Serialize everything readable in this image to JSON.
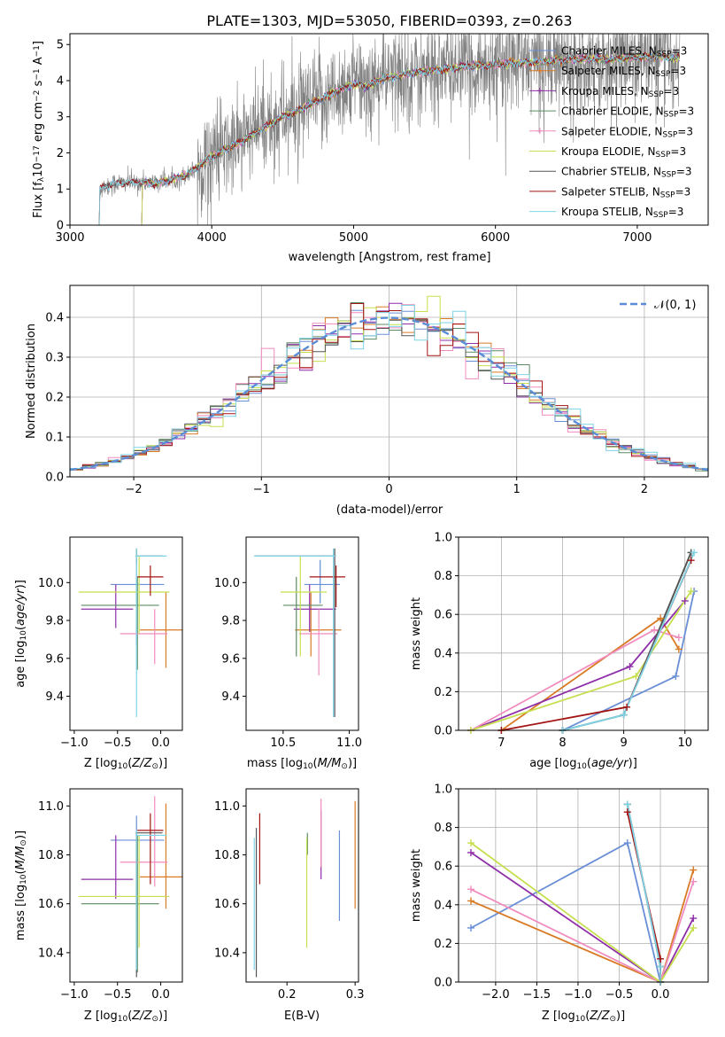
{
  "title": "PLATE=1303, MJD=53050, FIBERID=0393, z=0.263",
  "series_colors": [
    "#6a8fd6",
    "#d97a25",
    "#8f2fa8",
    "#5c8c63",
    "#f08cbe",
    "#c5df4f",
    "#555555",
    "#a31414",
    "#7ed4e6"
  ],
  "chart_data": [
    {
      "id": "spectrum",
      "type": "line",
      "xlabel": "wavelength [Angstrom, rest frame]",
      "ylabel": "Flux [f$_\\lambda$10$^{-17}$ erg cm$^{-2}$ s$^{-1}$ A$^{-1}$]",
      "ylabel_parts": [
        "Flux [f",
        "λ",
        "10",
        "−17",
        " erg cm",
        "−2",
        " s",
        "−1",
        " A",
        "−1",
        "]"
      ],
      "xlim": [
        3000,
        7500
      ],
      "ylim": [
        0,
        5.3
      ],
      "xticks": [
        3000,
        4000,
        5000,
        6000,
        7000
      ],
      "yticks": [
        0,
        1,
        2,
        3,
        4,
        5
      ],
      "data_color": "#808080",
      "data_range": [
        3200,
        7300
      ],
      "data_profile": {
        "x": [
          3200,
          3300,
          3500,
          3600,
          3700,
          3800,
          3900,
          3950,
          4000,
          4100,
          4200,
          4300,
          4400,
          4500,
          4600,
          4700,
          4800,
          4900,
          5000,
          5100,
          5200,
          5400,
          5600,
          5800,
          6000,
          6200,
          6400,
          6600,
          6800,
          7000,
          7200,
          7300
        ],
        "y": [
          1.0,
          1.15,
          1.2,
          1.15,
          1.25,
          1.35,
          1.6,
          1.75,
          1.9,
          2.1,
          2.3,
          2.55,
          2.75,
          3.0,
          3.15,
          3.35,
          3.55,
          3.75,
          3.9,
          3.85,
          4.05,
          4.2,
          4.3,
          4.4,
          4.45,
          4.5,
          4.55,
          4.6,
          4.6,
          4.65,
          4.65,
          4.6
        ]
      },
      "legend": [
        "Chabrier MILES, N$_{SSP}$=3",
        "Salpeter MILES, N$_{SSP}$=3",
        "Kroupa MILES, N$_{SSP}$=3",
        "Chabrier ELODIE, N$_{SSP}$=3",
        "Salpeter ELODIE, N$_{SSP}$=3",
        "Kroupa ELODIE, N$_{SSP}$=3",
        "Chabrier STELIB, N$_{SSP}$=3",
        "Salpeter STELIB, N$_{SSP}$=3",
        "Kroupa STELIB, N$_{SSP}$=3"
      ],
      "legend_parts": [
        {
          "pre": "Chabrier MILES, N",
          "sub": "SSP",
          "post": "=3"
        },
        {
          "pre": "Salpeter MILES, N",
          "sub": "SSP",
          "post": "=3"
        },
        {
          "pre": "Kroupa MILES, N",
          "sub": "SSP",
          "post": "=3"
        },
        {
          "pre": "Chabrier ELODIE, N",
          "sub": "SSP",
          "post": "=3"
        },
        {
          "pre": "Salpeter ELODIE, N",
          "sub": "SSP",
          "post": "=3"
        },
        {
          "pre": "Kroupa ELODIE, N",
          "sub": "SSP",
          "post": "=3"
        },
        {
          "pre": "Chabrier STELIB, N",
          "sub": "SSP",
          "post": "=3"
        },
        {
          "pre": "Salpeter STELIB, N",
          "sub": "SSP",
          "post": "=3"
        },
        {
          "pre": "Kroupa STELIB, N",
          "sub": "SSP",
          "post": "=3"
        }
      ],
      "legend_loc": "upper right",
      "grid": false
    },
    {
      "id": "residuals",
      "type": "line",
      "xlabel": "(data-model)/error",
      "ylabel": "Normed distribution",
      "xlim": [
        -2.5,
        2.5
      ],
      "ylim": [
        0,
        0.48
      ],
      "xticks": [
        -2,
        -1,
        0,
        1,
        2
      ],
      "yticks": [
        0.0,
        0.1,
        0.2,
        0.3,
        0.4
      ],
      "legend": [
        "$\\mathcal{N}(0,1)$"
      ],
      "legend_text": "𝒩(0, 1)",
      "legend_loc": "upper right",
      "gaussian": {
        "mu": 0,
        "sigma": 1,
        "color": "#5b8cd6",
        "style": "dashed"
      },
      "hist_bin_width": 0.1,
      "hist_range": [
        -2.5,
        2.5
      ],
      "grid": true
    },
    {
      "id": "age-vs-Z",
      "type": "errorbar",
      "xlabel": "Z [log$_{10}$($Z/Z_\\odot$)]",
      "ylabel": "age  [log$_{10}$($age/yr$)]",
      "xlim": [
        -1.05,
        0.25
      ],
      "ylim": [
        9.22,
        10.24
      ],
      "xticks": [
        -1.0,
        -0.5,
        0.0
      ],
      "yticks": [
        9.4,
        9.6,
        9.8,
        10.0
      ],
      "points": [
        {
          "x": -0.28,
          "xerr": [
            0.3,
            0.32
          ],
          "y": 9.99,
          "yerr": [
            0.32,
            0.13
          ]
        },
        {
          "x": 0.06,
          "xerr": [
            0.3,
            0.22
          ],
          "y": 9.75,
          "yerr": [
            0.2,
            0.2
          ]
        },
        {
          "x": -0.52,
          "xerr": [
            0.4,
            0.2
          ],
          "y": 9.86,
          "yerr": [
            0.1,
            0.13
          ]
        },
        {
          "x": -0.27,
          "xerr": [
            0.65,
            0.25
          ],
          "y": 9.88,
          "yerr": [
            0.34,
            0.15
          ]
        },
        {
          "x": -0.07,
          "xerr": [
            0.4,
            0.15
          ],
          "y": 9.73,
          "yerr": [
            0.16,
            0.13
          ]
        },
        {
          "x": -0.25,
          "xerr": [
            0.7,
            0.35
          ],
          "y": 9.95,
          "yerr": [
            0.22,
            0.19
          ]
        },
        {
          "x": -0.28,
          "xerr": [
            0.01,
            0.3
          ],
          "y": 10.14,
          "yerr": [
            0.04,
            0.04
          ]
        },
        {
          "x": -0.12,
          "xerr": [
            0.15,
            0.15
          ],
          "y": 10.03,
          "yerr": [
            0.1,
            0.06
          ]
        },
        {
          "x": -0.28,
          "xerr": [
            0.01,
            0.35
          ],
          "y": 10.14,
          "yerr": [
            0.85,
            0.04
          ]
        }
      ]
    },
    {
      "id": "age-vs-mass",
      "type": "errorbar",
      "xlabel": "mass [log$_{10}$($M/M_\\odot$)]",
      "ylabel": "",
      "xlim": [
        10.22,
        11.07
      ],
      "ylim": [
        9.22,
        10.24
      ],
      "xticks": [
        10.5,
        11.0
      ],
      "yticks": [
        9.4,
        9.6,
        9.8,
        10.0
      ],
      "points": [
        {
          "x": 10.78,
          "xerr": [
            0.12,
            0.15
          ],
          "y": 9.99,
          "yerr": [
            0.1,
            0.13
          ]
        },
        {
          "x": 10.71,
          "xerr": [
            0.12,
            0.23
          ],
          "y": 9.75,
          "yerr": [
            0.14,
            0.2
          ]
        },
        {
          "x": 10.7,
          "xerr": [
            0.12,
            0.2
          ],
          "y": 9.86,
          "yerr": [
            0.12,
            0.13
          ]
        },
        {
          "x": 10.6,
          "xerr": [
            0.1,
            0.2
          ],
          "y": 9.88,
          "yerr": [
            0.27,
            0.15
          ]
        },
        {
          "x": 10.77,
          "xerr": [
            0.15,
            0.14
          ],
          "y": 9.73,
          "yerr": [
            0.22,
            0.13
          ]
        },
        {
          "x": 10.63,
          "xerr": [
            0.15,
            0.2
          ],
          "y": 9.95,
          "yerr": [
            0.34,
            0.19
          ]
        },
        {
          "x": 10.89,
          "xerr": [
            0.6,
            0.01
          ],
          "y": 10.14,
          "yerr": [
            0.85,
            0.04
          ]
        },
        {
          "x": 10.9,
          "xerr": [
            0.2,
            0.07
          ],
          "y": 10.03,
          "yerr": [
            0.16,
            0.06
          ]
        },
        {
          "x": 10.88,
          "xerr": [
            0.6,
            0.02
          ],
          "y": 10.14,
          "yerr": [
            0.85,
            0.04
          ]
        }
      ]
    },
    {
      "id": "weight-vs-age",
      "type": "line",
      "xlabel": "age  [log$_{10}$($age/yr$)]",
      "ylabel": "mass weight",
      "xlim": [
        6.3,
        10.38
      ],
      "ylim": [
        0,
        1.0
      ],
      "xticks": [
        7,
        8,
        9,
        10
      ],
      "yticks": [
        0.0,
        0.2,
        0.4,
        0.6,
        0.8,
        1.0
      ],
      "grid": true,
      "series": [
        {
          "x": [
            8.0,
            9.85,
            10.15
          ],
          "y": [
            0.0,
            0.28,
            0.72
          ]
        },
        {
          "x": [
            7.0,
            9.6,
            9.9
          ],
          "y": [
            0.0,
            0.58,
            0.42
          ]
        },
        {
          "x": [
            6.5,
            9.1,
            10.0
          ],
          "y": [
            0.0,
            0.33,
            0.67
          ]
        },
        {
          "x": [
            8.0,
            9.0,
            10.1
          ],
          "y": [
            0.0,
            0.08,
            0.92
          ]
        },
        {
          "x": [
            6.5,
            9.5,
            9.9
          ],
          "y": [
            0.0,
            0.52,
            0.48
          ]
        },
        {
          "x": [
            6.5,
            9.2,
            10.1
          ],
          "y": [
            0.0,
            0.28,
            0.72
          ]
        },
        {
          "x": [
            8.0,
            9.0,
            10.1
          ],
          "y": [
            0.0,
            0.08,
            0.92
          ]
        },
        {
          "x": [
            7.0,
            9.05,
            10.1
          ],
          "y": [
            0.0,
            0.12,
            0.88
          ]
        },
        {
          "x": [
            8.0,
            9.0,
            10.15
          ],
          "y": [
            0.0,
            0.08,
            0.92
          ]
        }
      ]
    },
    {
      "id": "mass-vs-Z",
      "type": "errorbar",
      "xlabel": "Z [log$_{10}$($Z/Z_\\odot$)]",
      "ylabel": "mass [log$_{10}$($M/M_\\odot$)]",
      "xlim": [
        -1.05,
        0.25
      ],
      "ylim": [
        10.28,
        11.07
      ],
      "xticks": [
        -1.0,
        -0.5,
        0.0
      ],
      "yticks": [
        10.4,
        10.6,
        10.8,
        11.0
      ],
      "points": [
        {
          "x": -0.28,
          "xerr": [
            0.3,
            0.32
          ],
          "y": 10.86,
          "yerr": [
            0.33,
            0.1
          ]
        },
        {
          "x": 0.06,
          "xerr": [
            0.3,
            0.22
          ],
          "y": 10.71,
          "yerr": [
            0.13,
            0.3
          ]
        },
        {
          "x": -0.52,
          "xerr": [
            0.4,
            0.2
          ],
          "y": 10.7,
          "yerr": [
            0.08,
            0.18
          ]
        },
        {
          "x": -0.27,
          "xerr": [
            0.65,
            0.25
          ],
          "y": 10.6,
          "yerr": [
            0.28,
            0.28
          ]
        },
        {
          "x": -0.07,
          "xerr": [
            0.4,
            0.15
          ],
          "y": 10.77,
          "yerr": [
            0.1,
            0.27
          ]
        },
        {
          "x": -0.25,
          "xerr": [
            0.7,
            0.35
          ],
          "y": 10.63,
          "yerr": [
            0.21,
            0.25
          ]
        },
        {
          "x": -0.28,
          "xerr": [
            0.01,
            0.3
          ],
          "y": 10.89,
          "yerr": [
            0.59,
            0.0
          ]
        },
        {
          "x": -0.12,
          "xerr": [
            0.15,
            0.15
          ],
          "y": 10.9,
          "yerr": [
            0.22,
            0.07
          ]
        },
        {
          "x": -0.28,
          "xerr": [
            0.01,
            0.35
          ],
          "y": 10.88,
          "yerr": [
            0.55,
            0.02
          ]
        }
      ]
    },
    {
      "id": "mass-vs-ebv",
      "type": "errorbar",
      "xlabel": "E(B-V)",
      "ylabel": "",
      "xlim": [
        0.14,
        0.305
      ],
      "ylim": [
        10.28,
        11.07
      ],
      "xticks": [
        0.2,
        0.3
      ],
      "yticks": [
        10.4,
        10.6,
        10.8,
        11.0
      ],
      "points": [
        {
          "x": 0.277,
          "y": 10.78,
          "yerr": [
            0.25,
            0.12
          ]
        },
        {
          "x": 0.3,
          "y": 10.8,
          "yerr": [
            0.22,
            0.22
          ]
        },
        {
          "x": 0.25,
          "y": 10.8,
          "yerr": [
            0.1,
            0.18
          ]
        },
        {
          "x": 0.23,
          "y": 10.85,
          "yerr": [
            0.05,
            0.04
          ]
        },
        {
          "x": 0.25,
          "y": 10.85,
          "yerr": [
            0.1,
            0.18
          ]
        },
        {
          "x": 0.229,
          "y": 10.72,
          "yerr": [
            0.3,
            0.15
          ]
        },
        {
          "x": 0.155,
          "y": 10.6,
          "yerr": [
            0.3,
            0.31
          ]
        },
        {
          "x": 0.16,
          "y": 10.85,
          "yerr": [
            0.17,
            0.12
          ]
        },
        {
          "x": 0.152,
          "y": 10.6,
          "yerr": [
            0.27,
            0.27
          ]
        }
      ]
    },
    {
      "id": "weight-vs-Z",
      "type": "line",
      "xlabel": "Z [log$_{10}$($Z/Z_\\odot$)]",
      "ylabel": "mass weight",
      "xlim": [
        -2.45,
        0.58
      ],
      "ylim": [
        0,
        1.0
      ],
      "xticks": [
        -2.0,
        -1.5,
        -1.0,
        -0.5,
        0.0
      ],
      "yticks": [
        0.0,
        0.2,
        0.4,
        0.6,
        0.8,
        1.0
      ],
      "grid": true,
      "series": [
        {
          "x": [
            -2.3,
            -0.4,
            0.0
          ],
          "y": [
            0.28,
            0.72,
            0.0
          ]
        },
        {
          "x": [
            -2.3,
            0.0,
            0.4
          ],
          "y": [
            0.42,
            0.0,
            0.58
          ]
        },
        {
          "x": [
            -2.3,
            0.0,
            0.4
          ],
          "y": [
            0.67,
            0.0,
            0.33
          ]
        },
        {
          "x": [
            -0.4,
            0.0,
            0.0
          ],
          "y": [
            0.92,
            0.08,
            0.0
          ]
        },
        {
          "x": [
            -2.3,
            0.0,
            0.4
          ],
          "y": [
            0.48,
            0.0,
            0.52
          ]
        },
        {
          "x": [
            -2.3,
            0.0,
            0.4
          ],
          "y": [
            0.72,
            0.0,
            0.28
          ]
        },
        {
          "x": [
            -0.4,
            0.0,
            0.0
          ],
          "y": [
            0.92,
            0.08,
            0.0
          ]
        },
        {
          "x": [
            -0.4,
            0.0,
            0.0
          ],
          "y": [
            0.88,
            0.12,
            0.0
          ]
        },
        {
          "x": [
            -0.4,
            0.0,
            0.0
          ],
          "y": [
            0.92,
            0.08,
            0.0
          ]
        }
      ]
    }
  ]
}
